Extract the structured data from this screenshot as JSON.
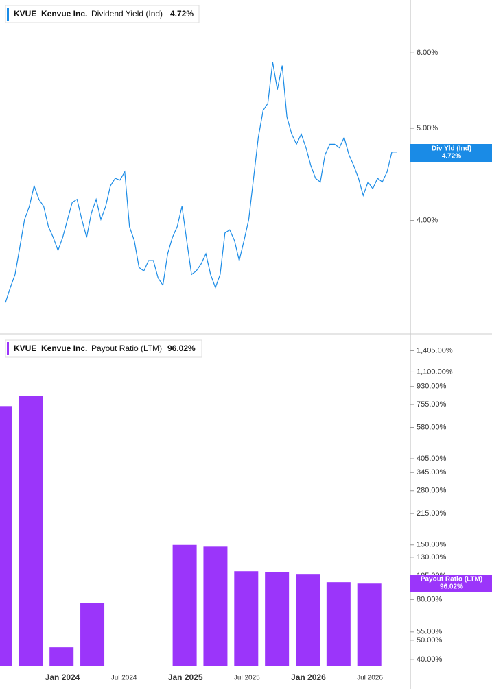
{
  "chart_data": [
    {
      "type": "line",
      "ticker": "KVUE",
      "company": "Kenvue Inc.",
      "title": "Dividend Yield (Ind)",
      "last_value_label": "4.72%",
      "badge_label": "Div Yld (Ind)",
      "color": "#1a8be6",
      "log_scale": true,
      "values": [
        3.28,
        3.4,
        3.51,
        3.75,
        4.01,
        4.14,
        4.35,
        4.21,
        4.14,
        3.94,
        3.84,
        3.72,
        3.84,
        4.01,
        4.18,
        4.21,
        4.01,
        3.84,
        4.07,
        4.21,
        4.01,
        4.14,
        4.35,
        4.43,
        4.41,
        4.5,
        3.94,
        3.81,
        3.57,
        3.54,
        3.63,
        3.63,
        3.48,
        3.42,
        3.69,
        3.84,
        3.94,
        4.14,
        3.81,
        3.51,
        3.54,
        3.6,
        3.69,
        3.51,
        3.4,
        3.51,
        3.88,
        3.91,
        3.81,
        3.63,
        3.81,
        4.01,
        4.43,
        4.89,
        5.22,
        5.31,
        5.87,
        5.49,
        5.82,
        5.14,
        4.93,
        4.81,
        4.93,
        4.77,
        4.57,
        4.43,
        4.39,
        4.69,
        4.81,
        4.81,
        4.77,
        4.89,
        4.69,
        4.57,
        4.43,
        4.25,
        4.39,
        4.32,
        4.43,
        4.39,
        4.5,
        4.72,
        4.72
      ],
      "ylim": [
        3.04,
        6.82
      ],
      "yticks": [
        {
          "value": 4,
          "label": "4.00%"
        },
        {
          "value": 5,
          "label": "5.00%"
        },
        {
          "value": 6,
          "label": "6.00%"
        }
      ]
    },
    {
      "type": "bar",
      "ticker": "KVUE",
      "company": "Kenvue Inc.",
      "title": "Payout Ratio (LTM)",
      "last_value_label": "96.02%",
      "badge_label": "Payout Ratio (LTM)",
      "color": "#9b35fa",
      "log_scale": true,
      "values": [
        742,
        836,
        46.1,
        77.0,
        null,
        null,
        150,
        147,
        110.7,
        109.8,
        107.3,
        97.6,
        96.02
      ],
      "ylim": [
        37,
        1600
      ],
      "yticks": [
        {
          "value": 40,
          "label": "40.00%"
        },
        {
          "value": 50,
          "label": "50.00%"
        },
        {
          "value": 55,
          "label": "55.00%"
        },
        {
          "value": 80,
          "label": "80.00%"
        },
        {
          "value": 105,
          "label": "105.00%"
        },
        {
          "value": 130,
          "label": "130.00%"
        },
        {
          "value": 150,
          "label": "150.00%"
        },
        {
          "value": 215,
          "label": "215.00%"
        },
        {
          "value": 280,
          "label": "280.00%"
        },
        {
          "value": 345,
          "label": "345.00%"
        },
        {
          "value": 405,
          "label": "405.00%"
        },
        {
          "value": 580,
          "label": "580.00%"
        },
        {
          "value": 755,
          "label": "755.00%"
        },
        {
          "value": 930,
          "label": "930.00%"
        },
        {
          "value": 1100,
          "label": "1,100.00%"
        },
        {
          "value": 1405,
          "label": "1,405.00%"
        }
      ],
      "x_labels": [
        "Jan 2024",
        "Jul 2024",
        "Jan 2025",
        "Jul 2025",
        "Jan 2026",
        "Jul 2026"
      ]
    }
  ]
}
